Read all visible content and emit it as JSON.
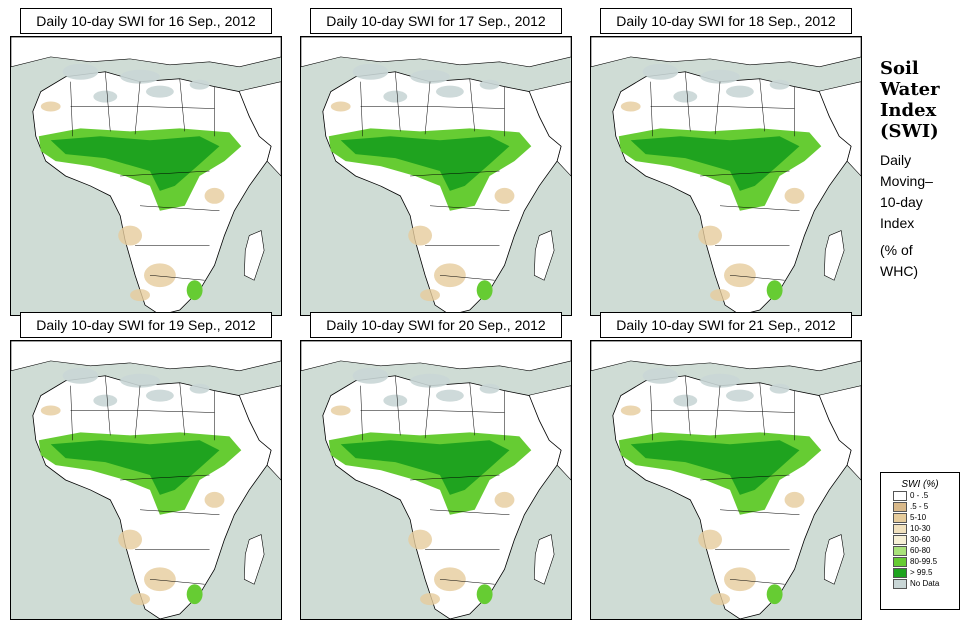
{
  "panels": [
    {
      "title": "Daily 10-day SWI for  16 Sep., 2012"
    },
    {
      "title": "Daily 10-day SWI for  17 Sep., 2012"
    },
    {
      "title": "Daily 10-day SWI for  18 Sep., 2012"
    },
    {
      "title": "Daily 10-day SWI for  19 Sep., 2012"
    },
    {
      "title": "Daily 10-day SWI for  20 Sep., 2012"
    },
    {
      "title": "Daily 10-day SWI for  21 Sep., 2012"
    }
  ],
  "side": {
    "title_lines": [
      "Soil",
      "Water",
      "Index",
      "(SWI)"
    ],
    "subtitle_lines": [
      "Daily",
      "Moving–",
      "10-day",
      "Index"
    ],
    "unit_lines": [
      "(% of",
      " WHC)"
    ]
  },
  "legend": {
    "title": "SWI (%)",
    "items": [
      {
        "label": "0 - .5",
        "color": "#ffffff"
      },
      {
        "label": ".5 - 5",
        "color": "#d9b98a"
      },
      {
        "label": "5-10",
        "color": "#e6cc9c"
      },
      {
        "label": "10-30",
        "color": "#f2e2bf"
      },
      {
        "label": "30-60",
        "color": "#f7f0d6"
      },
      {
        "label": "60-80",
        "color": "#a9e27a"
      },
      {
        "label": "80-99.5",
        "color": "#66cc33"
      },
      {
        "label": "> 99.5",
        "color": "#1fa31f"
      },
      {
        "label": "No Data",
        "color": "#c9d6d6"
      }
    ]
  },
  "colors": {
    "ocean": "#cfdcd5",
    "land": "#ffffff",
    "sahara_nodata": "#c9d6d6"
  }
}
